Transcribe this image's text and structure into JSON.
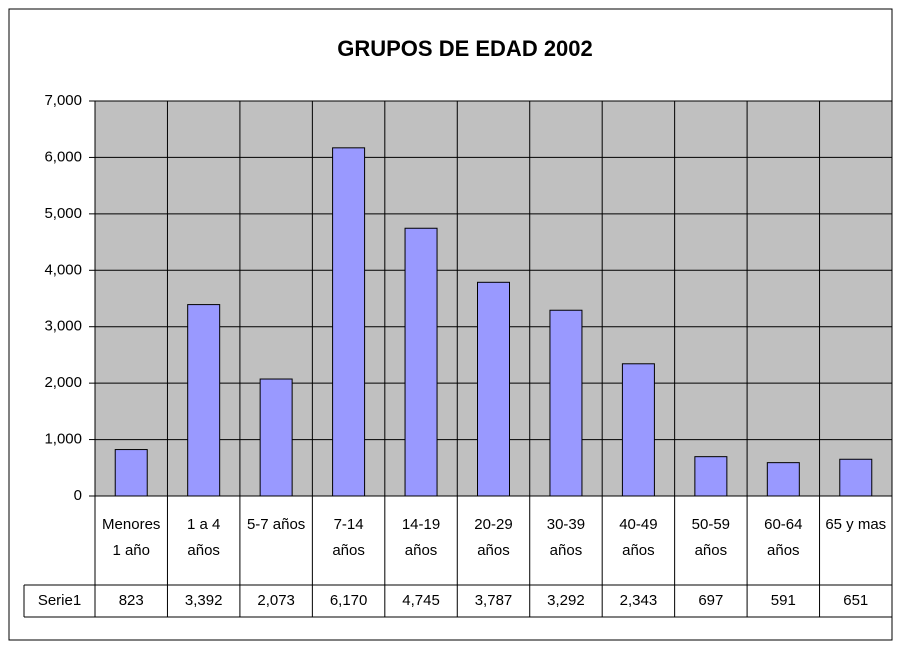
{
  "chart_data": {
    "type": "bar",
    "title": "GRUPOS DE EDAD 2002",
    "categories": [
      "Menores 1 año",
      "1 a 4 años",
      "5-7 años",
      "7-14 años",
      "14-19 años",
      "20-29 años",
      "30-39 años",
      "40-49 años",
      "50-59 años",
      "60-64 años",
      "65 y mas"
    ],
    "series": [
      {
        "name": "Serie1",
        "color": "#9999ff",
        "values": [
          823,
          3392,
          2073,
          6170,
          4745,
          3787,
          3292,
          2343,
          697,
          591,
          651
        ],
        "value_labels": [
          "823",
          "3,392",
          "2,073",
          "6,170",
          "4,745",
          "3,787",
          "3,292",
          "2,343",
          "697",
          "591",
          "651"
        ]
      }
    ],
    "ylim": [
      0,
      7000
    ],
    "yticks": [
      0,
      {
        "value": 1000,
        "label": "1,000"
      },
      {
        "value": 2000,
        "label": "2,000"
      },
      {
        "value": 3000,
        "label": "3,000"
      },
      {
        "value": 4000,
        "label": "4,000"
      },
      {
        "value": 5000,
        "label": "5,000"
      },
      {
        "value": 6000,
        "label": "6,000"
      },
      {
        "value": 7000,
        "label": "7,000"
      }
    ],
    "grid": true
  }
}
